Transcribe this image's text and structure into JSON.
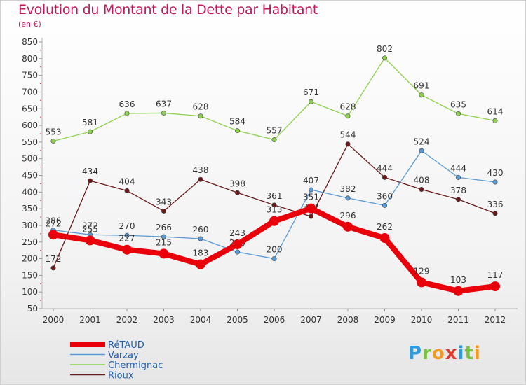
{
  "title": "Evolution du Montant de la Dette par Habitant",
  "subtitle": "(en €)",
  "logo": [
    "P",
    "r",
    "o",
    "x",
    "i",
    "t",
    "i"
  ],
  "logo_colors": [
    "#2e9be0",
    "#7ac143",
    "#f29a1f",
    "#e03a2e",
    "#2e9be0",
    "#7ac143",
    "#f29a1f"
  ],
  "chart_data": {
    "type": "line",
    "x": [
      "2000",
      "2001",
      "2002",
      "2003",
      "2004",
      "2005",
      "2006",
      "2007",
      "2008",
      "2009",
      "2010",
      "2011",
      "2012"
    ],
    "ylim": [
      50,
      850
    ],
    "yticks": [
      50,
      100,
      150,
      200,
      250,
      300,
      350,
      400,
      450,
      500,
      550,
      600,
      650,
      700,
      750,
      800,
      850
    ],
    "grid": false,
    "legend": "bottom-left",
    "series": [
      {
        "name": "Rioux",
        "color": "#6b1a1a",
        "values": [
          172,
          434,
          404,
          343,
          438,
          398,
          361,
          327,
          544,
          444,
          408,
          378,
          336
        ],
        "labels": [
          "172",
          "434",
          "404",
          "343",
          "438",
          "398",
          "361",
          "327",
          "544",
          "444",
          "408",
          "378",
          "336"
        ]
      },
      {
        "name": "Chermignac",
        "color": "#8fd14f",
        "values": [
          553,
          581,
          636,
          637,
          628,
          584,
          557,
          671,
          628,
          802,
          691,
          635,
          614
        ],
        "labels": [
          "553",
          "581",
          "636",
          "637",
          "628",
          "584",
          "557",
          "671",
          "628",
          "802",
          "691",
          "635",
          "614"
        ]
      },
      {
        "name": "Varzay",
        "color": "#5b9bd5",
        "values": [
          286,
          272,
          270,
          266,
          260,
          220,
          200,
          407,
          382,
          360,
          524,
          444,
          430
        ],
        "labels": [
          "286",
          "272",
          "270",
          "266",
          "260",
          "220",
          "200",
          "407",
          "382",
          "360",
          "524",
          "444",
          "430"
        ]
      },
      {
        "name": "RéTAUD",
        "color": "#e8000b",
        "values": [
          272,
          255,
          227,
          215,
          183,
          243,
          313,
          351,
          296,
          262,
          129,
          103,
          117
        ],
        "labels": [
          "272",
          "255",
          "227",
          "215",
          "183",
          "243",
          "313",
          "351",
          "296",
          "262",
          "129",
          "103",
          "117"
        ]
      }
    ],
    "legend_order": [
      "RéTAUD",
      "Varzay",
      "Chermignac",
      "Rioux"
    ]
  }
}
